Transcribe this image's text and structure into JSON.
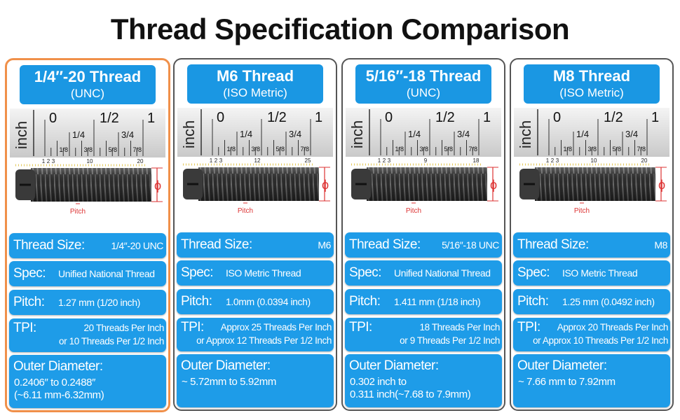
{
  "title": "Thread Specification Comparison",
  "cards": [
    {
      "title": "1/4″-20 Thread",
      "subtitle": "(UNC)",
      "highlighted": true,
      "ruler": {
        "unit": "inch",
        "major": [
          "0",
          "1/2",
          "1"
        ],
        "quarters": [
          "1/4",
          "3/4"
        ],
        "eighths": [
          "1/8",
          "3/8",
          "5/8",
          "7/8"
        ]
      },
      "count_labels": [
        "1",
        "2",
        "3",
        "10",
        "20"
      ],
      "pitch_label": "Pitch",
      "diameter_symbol": "ϕ",
      "specs": [
        {
          "label": "Thread Size:",
          "lines": [
            "1/4″-20 UNC"
          ]
        },
        {
          "label": "Spec:",
          "lines": [
            "Unified National Thread"
          ]
        },
        {
          "label": "Pitch:",
          "lines": [
            "1.27 mm (1/20 inch)"
          ]
        },
        {
          "label": "TPI:",
          "lines": [
            "20 Threads Per Inch",
            "or 10 Threads Per 1/2 Inch"
          ]
        },
        {
          "label": "Outer Diameter:",
          "lines": [
            "0.2406″ to 0.2488″",
            "(~6.11 mm-6.32mm)"
          ]
        }
      ]
    },
    {
      "title": "M6 Thread",
      "subtitle": "(ISO Metric)",
      "highlighted": false,
      "ruler": {
        "unit": "inch",
        "major": [
          "0",
          "1/2",
          "1"
        ],
        "quarters": [
          "1/4",
          "3/4"
        ],
        "eighths": [
          "1/8",
          "3/8",
          "5/8",
          "7/8"
        ]
      },
      "count_labels": [
        "1",
        "2",
        "3",
        "12",
        "25"
      ],
      "pitch_label": "Pitch",
      "diameter_symbol": "ϕ",
      "specs": [
        {
          "label": "Thread Size:",
          "lines": [
            "M6"
          ]
        },
        {
          "label": "Spec:",
          "lines": [
            "ISO Metric Thread"
          ]
        },
        {
          "label": "Pitch:",
          "lines": [
            "1.0mm (0.0394 inch)"
          ]
        },
        {
          "label": "TPI:",
          "lines": [
            "Approx 25 Threads Per Inch",
            "or Approx 12 Threads Per 1/2 Inch"
          ]
        },
        {
          "label": "Outer Diameter:",
          "lines": [
            "~ 5.72mm to 5.92mm"
          ]
        }
      ]
    },
    {
      "title": "5/16″-18 Thread",
      "subtitle": "(UNC)",
      "highlighted": false,
      "ruler": {
        "unit": "inch",
        "major": [
          "0",
          "1/2",
          "1"
        ],
        "quarters": [
          "1/4",
          "3/4"
        ],
        "eighths": [
          "1/8",
          "3/8",
          "5/8",
          "7/8"
        ]
      },
      "count_labels": [
        "1",
        "2",
        "3",
        "9",
        "18"
      ],
      "pitch_label": "Pitch",
      "diameter_symbol": "ϕ",
      "specs": [
        {
          "label": "Thread Size:",
          "lines": [
            "5/16″-18 UNC"
          ]
        },
        {
          "label": "Spec:",
          "lines": [
            "Unified National Thread"
          ]
        },
        {
          "label": "Pitch:",
          "lines": [
            "1.411 mm (1/18 inch)"
          ]
        },
        {
          "label": "TPI:",
          "lines": [
            "18 Threads Per Inch",
            "or 9 Threads Per 1/2 Inch"
          ]
        },
        {
          "label": "Outer Diameter:",
          "lines": [
            "0.302 inch to",
            "0.311 inch(~7.68 to 7.9mm)"
          ]
        }
      ]
    },
    {
      "title": "M8 Thread",
      "subtitle": "(ISO Metric)",
      "highlighted": false,
      "ruler": {
        "unit": "inch",
        "major": [
          "0",
          "1/2",
          "1"
        ],
        "quarters": [
          "1/4",
          "3/4"
        ],
        "eighths": [
          "1/8",
          "3/8",
          "5/8",
          "7/8"
        ]
      },
      "count_labels": [
        "1",
        "2",
        "3",
        "10",
        "20"
      ],
      "pitch_label": "Pitch",
      "diameter_symbol": "ϕ",
      "specs": [
        {
          "label": "Thread Size:",
          "lines": [
            "M8"
          ]
        },
        {
          "label": "Spec:",
          "lines": [
            "ISO Metric Thread"
          ]
        },
        {
          "label": "Pitch:",
          "lines": [
            "1.25 mm (0.0492 inch)"
          ]
        },
        {
          "label": "TPI:",
          "lines": [
            "Approx 20 Threads Per Inch",
            "or Approx 10 Threads Per 1/2 Inch"
          ]
        },
        {
          "label": "Outer Diameter:",
          "lines": [
            "~ 7.66 mm to 7.92mm"
          ]
        }
      ]
    }
  ]
}
